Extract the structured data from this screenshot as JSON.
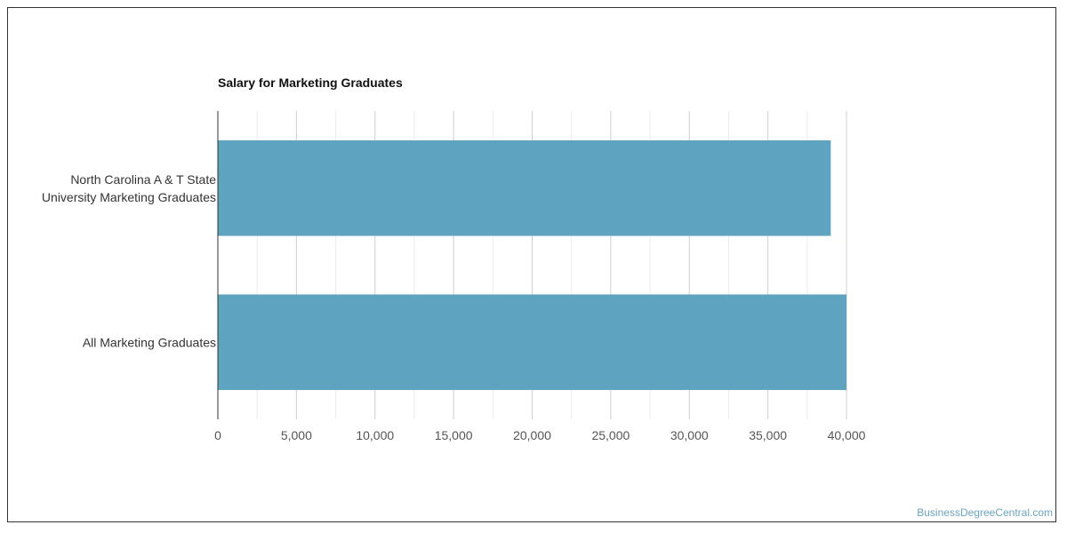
{
  "chart_data": {
    "type": "bar",
    "orientation": "horizontal",
    "title": "Salary for Marketing Graduates",
    "categories": [
      [
        "North Carolina A & T State",
        "University Marketing Graduates"
      ],
      [
        "All Marketing Graduates"
      ]
    ],
    "values": [
      39000,
      40000
    ],
    "xlim": [
      0,
      40000
    ],
    "xticks": [
      0,
      5000,
      10000,
      15000,
      20000,
      25000,
      30000,
      35000,
      40000
    ],
    "xtick_labels": [
      "0",
      "5,000",
      "10,000",
      "15,000",
      "20,000",
      "25,000",
      "30,000",
      "35,000",
      "40,000"
    ],
    "grid": true,
    "bar_color": "#5ea3c0"
  },
  "credit": "BusinessDegreeCentral.com"
}
